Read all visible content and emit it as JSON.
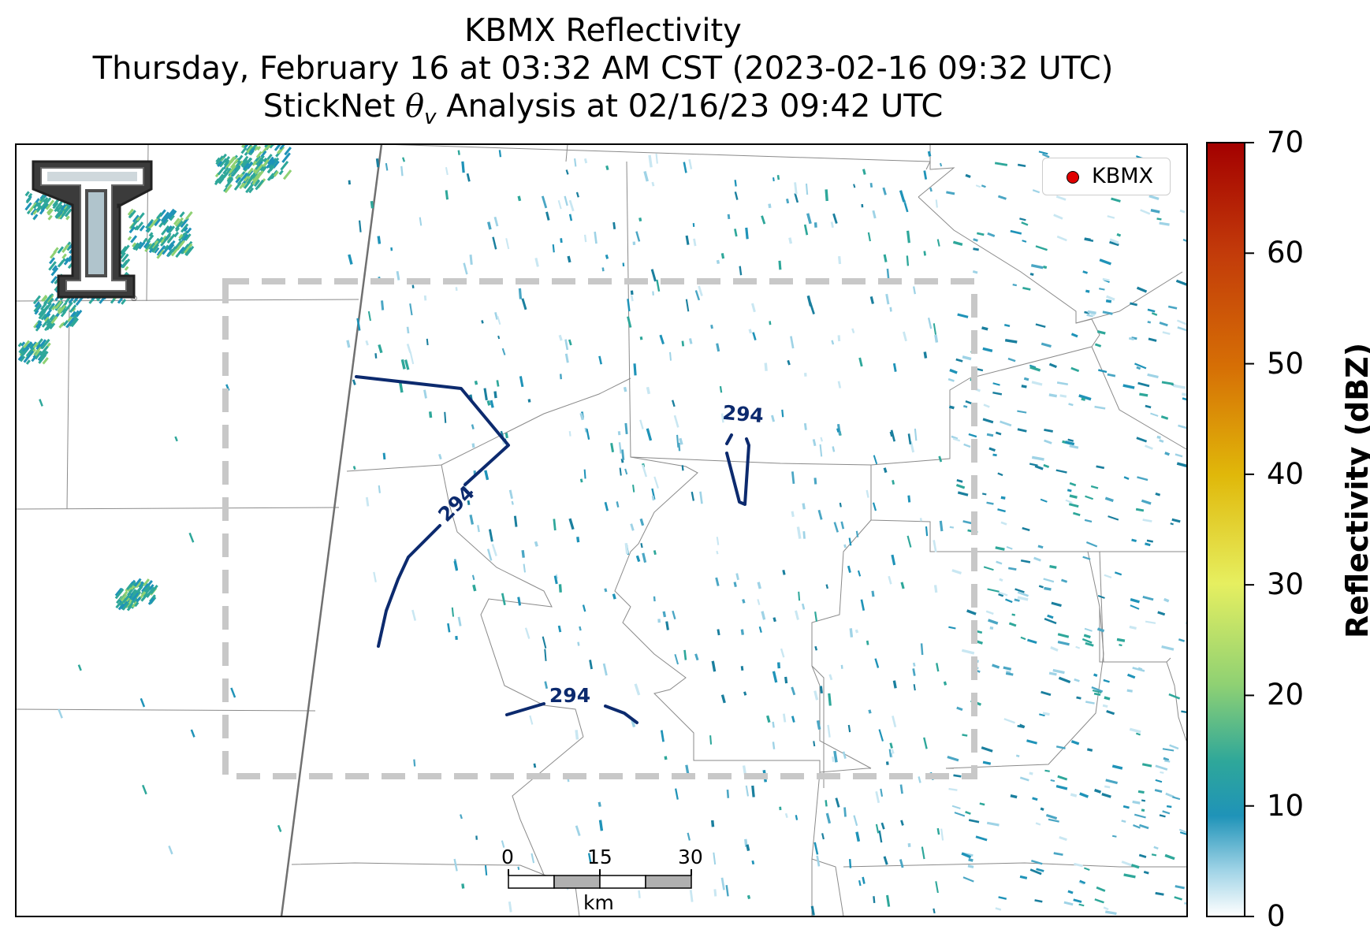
{
  "title": {
    "line1": "KBMX Reflectivity",
    "line2": "Thursday, February 16 at 03:32 AM CST (2023-02-16 09:32 UTC)",
    "line3_prefix": "StickNet ",
    "line3_symbol": "θ",
    "line3_sub": "v",
    "line3_suffix": " Analysis at 02/16/23 09:42 UTC"
  },
  "legend": {
    "label": "KBMX",
    "marker_color": "#e00000"
  },
  "contours": [
    {
      "label": "294"
    },
    {
      "label": "294"
    },
    {
      "label": "294"
    }
  ],
  "contour_color": "#0c2a6e",
  "colorbar": {
    "label": "Reflectivity (dBZ)",
    "ticks": [
      "0",
      "10",
      "20",
      "30",
      "40",
      "50",
      "60",
      "70"
    ],
    "range": [
      0,
      70
    ]
  },
  "scalebar": {
    "ticks": [
      "0",
      "15",
      "30"
    ],
    "unit": "km"
  },
  "logo": {
    "name": "texas-tech-double-t-logo"
  }
}
